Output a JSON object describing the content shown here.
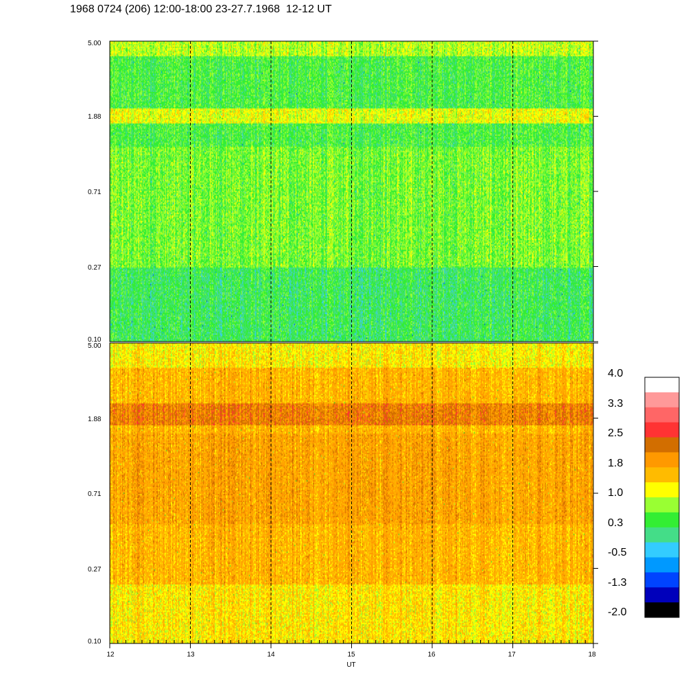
{
  "title": "1968 0724 (206) 12:00-18:00 23-27.7.1968  12-12 UT",
  "chart_data": [
    {
      "type": "heatmap",
      "panel": "top",
      "x_ticks": [
        "12",
        "13",
        "14",
        "15",
        "16",
        "17",
        "18"
      ],
      "xlim": [
        12,
        18
      ],
      "y_ticks": [
        "5.00",
        "1.88",
        "0.71",
        "0.27",
        "0.10"
      ],
      "ylim": [
        0.1,
        5.0
      ],
      "y_scale": "log",
      "dashed_vertical_lines_at": [
        13,
        14,
        15,
        16,
        17
      ],
      "dominant_values": "mostly -0.5 to 1.0, bright band near 1.88 and near 5.00"
    },
    {
      "type": "heatmap",
      "panel": "bottom",
      "x_ticks": [
        "12",
        "13",
        "14",
        "15",
        "16",
        "17",
        "18"
      ],
      "xlim": [
        12,
        18
      ],
      "y_ticks": [
        "5.00",
        "1.88",
        "0.71",
        "0.27",
        "0.10"
      ],
      "ylim": [
        0.1,
        5.0
      ],
      "y_scale": "log",
      "xlabel": "UT",
      "dashed_vertical_lines_at": [
        13,
        14,
        15,
        16,
        17
      ],
      "dominant_values": "mostly 1.0 to 2.5, darker band near 1.88"
    }
  ],
  "colorbar": {
    "labels": [
      "4.0",
      "3.3",
      "2.5",
      "1.8",
      "1.0",
      "0.3",
      "-0.5",
      "-1.3",
      "-2.0"
    ],
    "colors": [
      "#ffffff",
      "#ff9999",
      "#ff6666",
      "#ff3333",
      "#d26e00",
      "#ff9900",
      "#ffbb00",
      "#ffff00",
      "#99ff33",
      "#33ee33",
      "#44dd88",
      "#33ccff",
      "#0099ff",
      "#0044ff",
      "#0000bb",
      "#000000"
    ]
  }
}
